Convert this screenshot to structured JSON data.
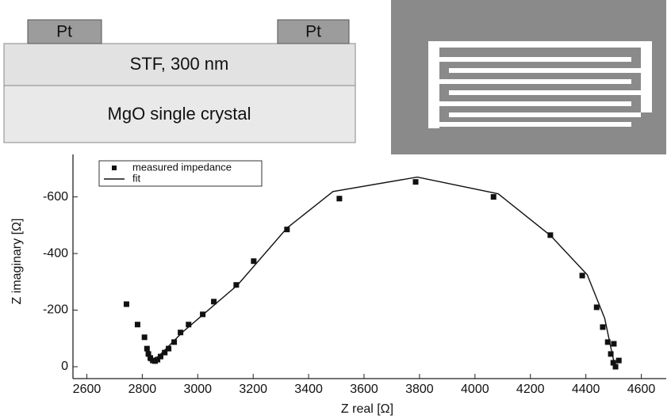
{
  "diagram": {
    "electrodes": [
      "Pt",
      "Pt"
    ],
    "layers": [
      "STF, 300 nm",
      "MgO single crystal"
    ]
  },
  "chart_data": {
    "type": "scatter",
    "x_label": "Z real [Ω]",
    "y_label": "Z imaginary [Ω]",
    "xlim": [
      2550,
      4690
    ],
    "ylim": [
      42,
      -750
    ],
    "xticks": [
      2600,
      2800,
      3000,
      3200,
      3400,
      3600,
      3800,
      4000,
      4200,
      4400,
      4600
    ],
    "yticks": [
      0,
      -200,
      -400,
      -600
    ],
    "grid": false,
    "legend": "upper left",
    "series": [
      {
        "name": "measured impedance",
        "style": "marker",
        "color": "#111111",
        "x": [
          2743,
          2783,
          2808,
          2817,
          2822,
          2829,
          2838,
          2846,
          2855,
          2866,
          2881,
          2895,
          2915,
          2938,
          2967,
          3018,
          3058,
          3139,
          3202,
          3322,
          3511,
          3786,
          4067,
          4272,
          4387,
          4439,
          4461,
          4479,
          4490,
          4499,
          4507,
          4519,
          4501
        ],
        "values": [
          -221,
          -149,
          -104,
          -64,
          -45,
          -31,
          -22,
          -20,
          -25,
          -36,
          -50,
          -64,
          -87,
          -121,
          -149,
          -185,
          -230,
          -289,
          -373,
          -485,
          -594,
          -653,
          -600,
          -465,
          -322,
          -210,
          -140,
          -87,
          -45,
          -14,
          0,
          -22,
          -81
        ]
      },
      {
        "name": "fit",
        "style": "line",
        "color": "#111111",
        "x": [
          2823,
          2858,
          2944,
          3144,
          3322,
          3488,
          3792,
          4084,
          4273,
          4405,
          4468,
          4491,
          4505
        ],
        "values": [
          -20,
          -36,
          -121,
          -289,
          -490,
          -619,
          -670,
          -611,
          -463,
          -325,
          -171,
          -64,
          0
        ]
      }
    ]
  }
}
